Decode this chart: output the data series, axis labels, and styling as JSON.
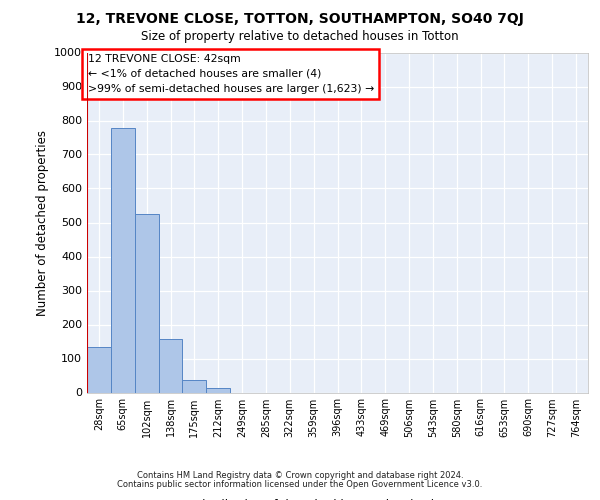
{
  "title_line1": "12, TREVONE CLOSE, TOTTON, SOUTHAMPTON, SO40 7QJ",
  "title_line2": "Size of property relative to detached houses in Totton",
  "xlabel": "Distribution of detached houses by size in Totton",
  "ylabel": "Number of detached properties",
  "footer_line1": "Contains HM Land Registry data © Crown copyright and database right 2024.",
  "footer_line2": "Contains public sector information licensed under the Open Government Licence v3.0.",
  "annotation_line1": "12 TREVONE CLOSE: 42sqm",
  "annotation_line2": "← <1% of detached houses are smaller (4)",
  "annotation_line3": ">99% of semi-detached houses are larger (1,623) →",
  "bin_labels": [
    "28sqm",
    "65sqm",
    "102sqm",
    "138sqm",
    "175sqm",
    "212sqm",
    "249sqm",
    "285sqm",
    "322sqm",
    "359sqm",
    "396sqm",
    "433sqm",
    "469sqm",
    "506sqm",
    "543sqm",
    "580sqm",
    "616sqm",
    "653sqm",
    "690sqm",
    "727sqm",
    "764sqm"
  ],
  "bar_values": [
    133,
    778,
    525,
    158,
    37,
    14,
    0,
    0,
    0,
    0,
    0,
    0,
    0,
    0,
    0,
    0,
    0,
    0,
    0,
    0,
    0
  ],
  "bar_color": "#aec6e8",
  "bar_edge_color": "#5585c5",
  "marker_color": "#cc0000",
  "ylim": [
    0,
    1000
  ],
  "yticks": [
    0,
    100,
    200,
    300,
    400,
    500,
    600,
    700,
    800,
    900,
    1000
  ],
  "bg_color": "#e8eef8",
  "fig_width": 6.0,
  "fig_height": 5.0,
  "dpi": 100
}
